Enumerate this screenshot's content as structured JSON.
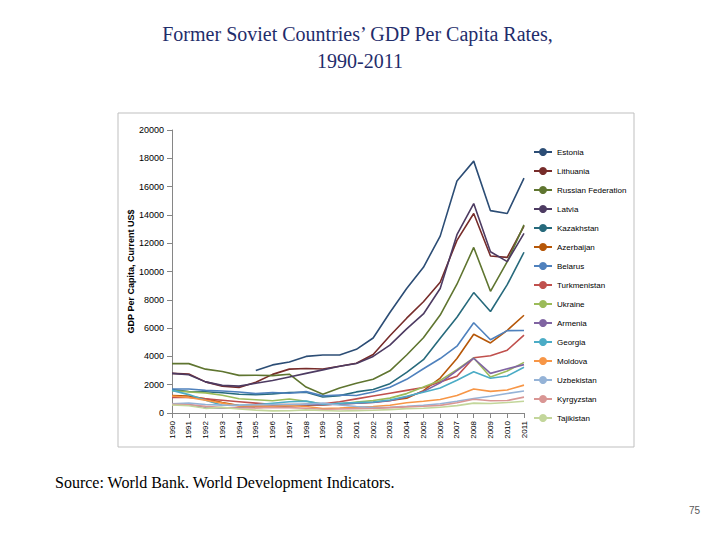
{
  "chart_data": {
    "type": "line",
    "title": "Former Soviet Countries’ GDP Per Capita Rates, 1990-2011",
    "y_label": "GDP Per Capita, Current US$",
    "categories": [
      "1990",
      "1991",
      "1992",
      "1993",
      "1994",
      "1995",
      "1996",
      "1997",
      "1998",
      "1999",
      "2000",
      "2001",
      "2002",
      "2003",
      "2004",
      "2005",
      "2006",
      "2007",
      "2008",
      "2009",
      "2010",
      "2011"
    ],
    "series": [
      {
        "name": "Estonia",
        "color": "#2C4D75",
        "values": [
          null,
          null,
          null,
          null,
          null,
          3000,
          3400,
          3600,
          4000,
          4100,
          4100,
          4500,
          5300,
          7100,
          8800,
          10300,
          12500,
          16400,
          17800,
          14300,
          14100,
          16600
        ]
      },
      {
        "name": "Lithuania",
        "color": "#772C2A",
        "values": [
          2800,
          2750,
          2200,
          1900,
          1800,
          2170,
          2730,
          3100,
          3140,
          3110,
          3300,
          3520,
          4140,
          5460,
          6700,
          7860,
          9240,
          12200,
          14100,
          11100,
          11000,
          13200
        ]
      },
      {
        "name": "Russian Federation",
        "color": "#5F7530",
        "values": [
          3490,
          3490,
          3100,
          2930,
          2660,
          2670,
          2640,
          2740,
          1830,
          1330,
          1770,
          2100,
          2380,
          2980,
          4100,
          5320,
          6920,
          9100,
          11700,
          8600,
          10700,
          13300
        ]
      },
      {
        "name": "Latvia",
        "color": "#4D3B62",
        "values": [
          2800,
          2700,
          2200,
          1950,
          1900,
          2100,
          2300,
          2550,
          2800,
          3050,
          3300,
          3500,
          4000,
          4800,
          5950,
          7000,
          8800,
          12600,
          14800,
          11400,
          10700,
          12700
        ]
      },
      {
        "name": "Kazakhstan",
        "color": "#276A7C",
        "values": [
          1650,
          1520,
          1500,
          1430,
          1320,
          1290,
          1350,
          1450,
          1470,
          1130,
          1230,
          1490,
          1660,
          2070,
          2870,
          3770,
          5290,
          6770,
          8510,
          7170,
          9070,
          11360
        ]
      },
      {
        "name": "Azerbaijan",
        "color": "#B65708",
        "values": [
          1240,
          1200,
          1000,
          740,
          520,
          400,
          420,
          500,
          560,
          570,
          650,
          700,
          760,
          880,
          1040,
          1580,
          2470,
          3850,
          5570,
          4950,
          5840,
          6910
        ]
      },
      {
        "name": "Belarus",
        "color": "#4F81BD",
        "values": [
          1700,
          1700,
          1600,
          1550,
          1480,
          1370,
          1450,
          1400,
          1510,
          1210,
          1270,
          1240,
          1480,
          1820,
          2380,
          3130,
          3850,
          4720,
          6380,
          5180,
          5820,
          5830
        ]
      },
      {
        "name": "Turkmenistan",
        "color": "#C0504D",
        "values": [
          1100,
          1100,
          1000,
          900,
          800,
          700,
          600,
          600,
          600,
          650,
          800,
          1000,
          1200,
          1400,
          1600,
          1800,
          2200,
          2600,
          3900,
          4050,
          4440,
          5500
        ]
      },
      {
        "name": "Ukraine",
        "color": "#9BBB59",
        "values": [
          1570,
          1490,
          1420,
          1250,
          1010,
          940,
          870,
          990,
          830,
          640,
          640,
          780,
          880,
          1050,
          1370,
          1830,
          2300,
          3070,
          3890,
          2550,
          2970,
          3580
        ]
      },
      {
        "name": "Armenia",
        "color": "#8064A2",
        "values": [
          640,
          590,
          370,
          350,
          400,
          460,
          510,
          520,
          610,
          590,
          620,
          690,
          740,
          870,
          1130,
          1520,
          2130,
          3000,
          3870,
          2800,
          3120,
          3420
        ]
      },
      {
        "name": "Georgia",
        "color": "#4BACC6",
        "values": [
          1600,
          1300,
          900,
          550,
          550,
          580,
          690,
          800,
          840,
          620,
          690,
          730,
          780,
          920,
          1190,
          1470,
          1760,
          2310,
          2920,
          2460,
          2620,
          3230
        ]
      },
      {
        "name": "Moldova",
        "color": "#F79646",
        "values": [
          1200,
          1100,
          900,
          700,
          500,
          500,
          480,
          530,
          460,
          320,
          350,
          410,
          460,
          550,
          720,
          830,
          950,
          1230,
          1700,
          1530,
          1630,
          1970
        ]
      },
      {
        "name": "Uzbekistan",
        "color": "#95B3D7",
        "values": [
          650,
          700,
          600,
          560,
          550,
          580,
          600,
          600,
          630,
          700,
          560,
          460,
          380,
          400,
          470,
          550,
          650,
          830,
          1020,
          1180,
          1380,
          1550
        ]
      },
      {
        "name": "Kyrgyzstan",
        "color": "#D99694",
        "values": [
          610,
          580,
          480,
          390,
          350,
          360,
          390,
          380,
          340,
          260,
          280,
          310,
          320,
          380,
          430,
          480,
          540,
          720,
          970,
          870,
          880,
          1120
        ]
      },
      {
        "name": "Tajikistan",
        "color": "#C3D69B",
        "values": [
          570,
          510,
          330,
          400,
          280,
          200,
          150,
          160,
          220,
          180,
          140,
          170,
          190,
          240,
          310,
          340,
          410,
          520,
          700,
          670,
          740,
          830
        ]
      }
    ],
    "ylim": [
      0,
      20000
    ],
    "yticks": [
      0,
      2000,
      4000,
      6000,
      8000,
      10000,
      12000,
      14000,
      16000,
      18000,
      20000
    ],
    "grid": false,
    "legend": "right",
    "annotations": [
      "Source: World Bank. World Development Indicators.",
      "75"
    ]
  }
}
